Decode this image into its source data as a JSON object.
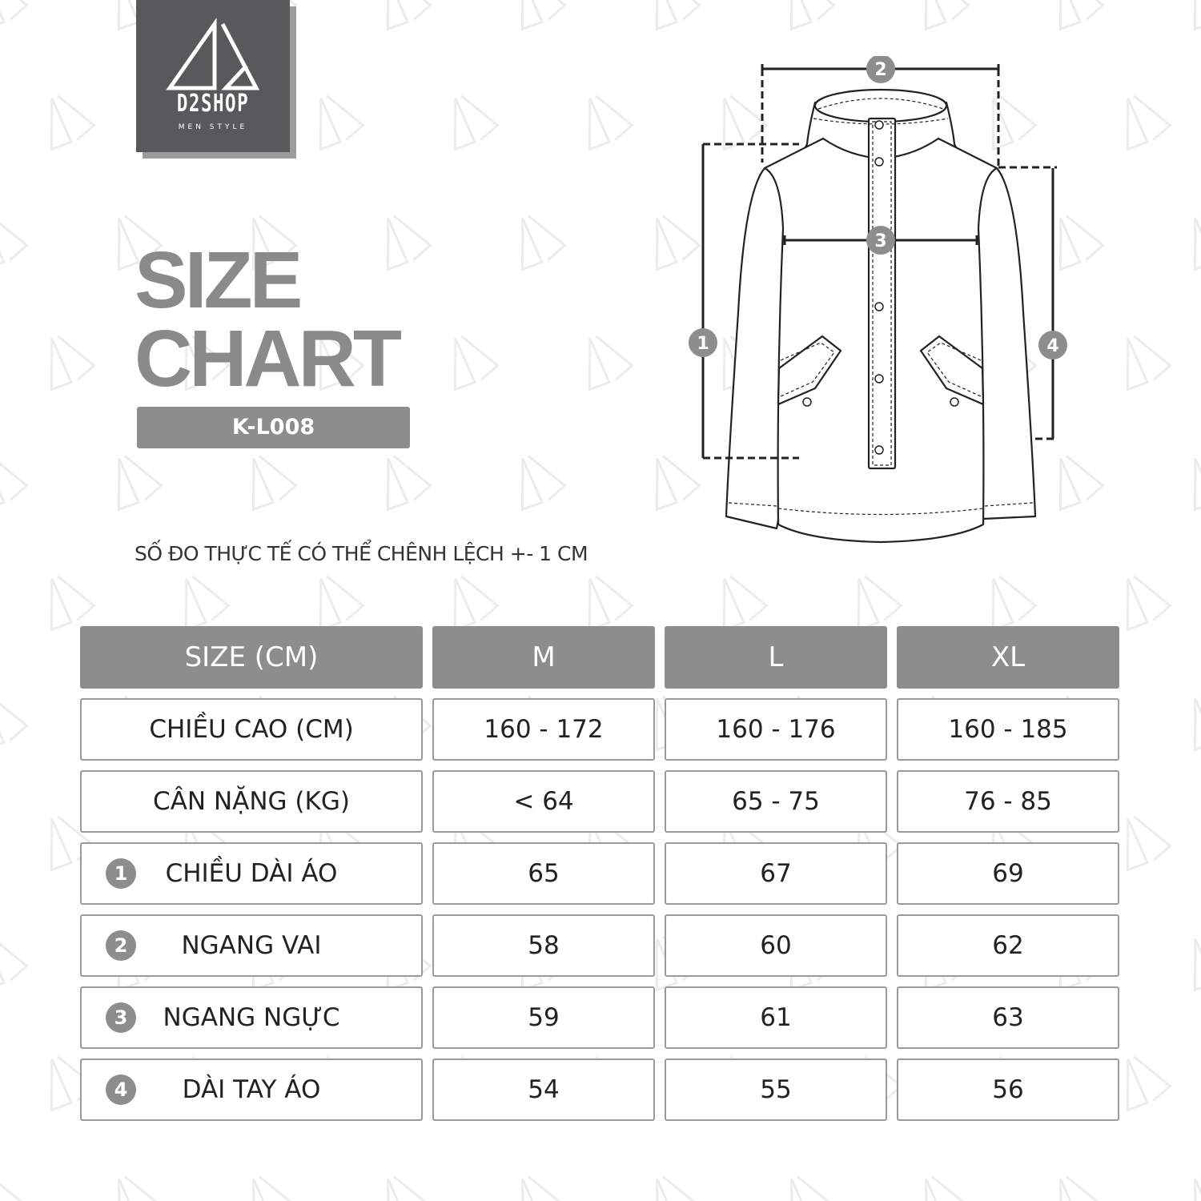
{
  "brand": {
    "name": "D2SHOP",
    "tagline": "MEN STYLE"
  },
  "title": {
    "line1": "SIZE",
    "line2": "CHART"
  },
  "product_code": "K-L008",
  "note": "SỐ ĐO THỰC TẾ CÓ THỂ CHÊNH LỆCH +- 1 CM",
  "diagram": {
    "markers": [
      "1",
      "2",
      "3",
      "4"
    ]
  },
  "colors": {
    "accent_gray": "#8d8d8d",
    "logo_bg": "#58595b"
  },
  "table": {
    "headers": [
      "SIZE (CM)",
      "M",
      "L",
      "XL"
    ],
    "rows": [
      {
        "marker": "",
        "label": "CHIỀU CAO (CM)",
        "values": [
          "160 - 172",
          "160 - 176",
          "160 - 185"
        ]
      },
      {
        "marker": "",
        "label": "CÂN NẶNG (KG)",
        "values": [
          "< 64",
          "65 - 75",
          "76 - 85"
        ]
      },
      {
        "marker": "1",
        "label": "CHIỀU DÀI ÁO",
        "values": [
          "65",
          "67",
          "69"
        ]
      },
      {
        "marker": "2",
        "label": "NGANG VAI",
        "values": [
          "58",
          "60",
          "62"
        ]
      },
      {
        "marker": "3",
        "label": "NGANG NGỰC",
        "values": [
          "59",
          "61",
          "63"
        ]
      },
      {
        "marker": "4",
        "label": "DÀI TAY ÁO",
        "values": [
          "54",
          "55",
          "56"
        ]
      }
    ]
  }
}
